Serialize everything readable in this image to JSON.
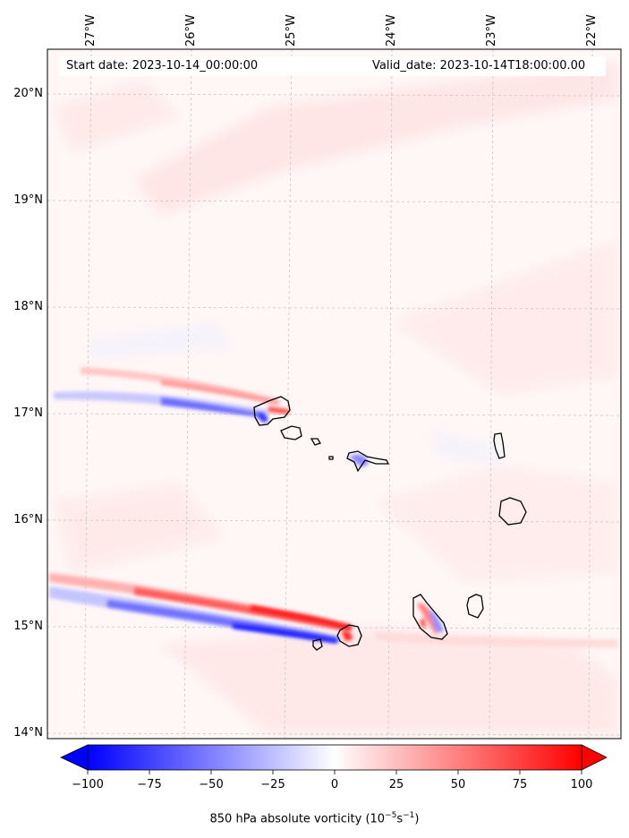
{
  "header": {
    "start_date": "Start date: 2023-10-14_00:00:00",
    "valid_date": "Valid_date: 2023-10-14T18:00:00.00"
  },
  "axes": {
    "lon_labels": [
      "27°W",
      "26°W",
      "25°W",
      "24°W",
      "23°W",
      "22°W"
    ],
    "lat_labels": [
      "20°N",
      "19°N",
      "18°N",
      "17°N",
      "16°N",
      "15°N",
      "14°N"
    ]
  },
  "colorbar": {
    "ticks": [
      "−100",
      "−75",
      "−50",
      "−25",
      "0",
      "25",
      "50",
      "75",
      "100"
    ],
    "label_main": "850 hPa absolute vorticity (10",
    "label_exp1": "−5",
    "label_mid": "s",
    "label_exp2": "−1",
    "label_end": ")",
    "min": -100,
    "max": 100,
    "low_color": "#0000ff",
    "high_color": "#ff0000"
  },
  "map_data": {
    "type": "heatmap",
    "variable": "850 hPa absolute vorticity",
    "units": "1e-5 s-1",
    "lon_range": [
      -27.3,
      -21.8
    ],
    "lat_range": [
      14.0,
      20.4
    ],
    "features": [
      "Santo Antão",
      "São Vicente",
      "Santa Luzia",
      "São Nicolau",
      "Sal",
      "Boa Vista",
      "Maio",
      "Santiago",
      "Fogo",
      "Brava"
    ]
  }
}
